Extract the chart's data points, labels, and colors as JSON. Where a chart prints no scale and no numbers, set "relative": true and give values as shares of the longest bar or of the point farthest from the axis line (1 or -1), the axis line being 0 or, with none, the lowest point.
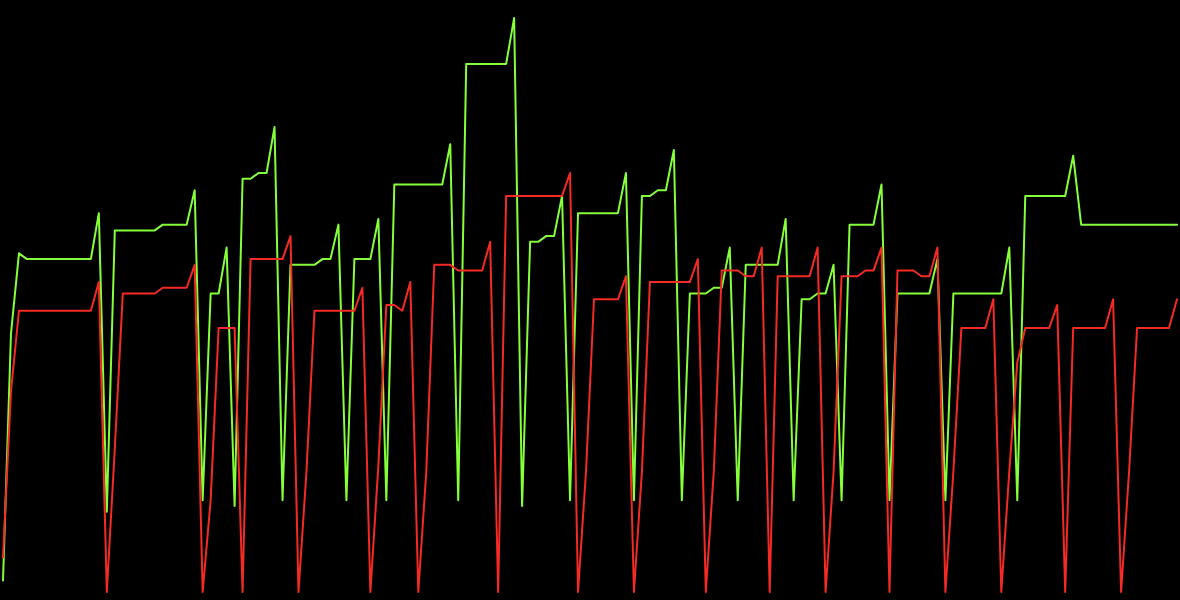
{
  "chart_data": {
    "type": "line",
    "relative": true,
    "marker": "none",
    "line_style": "solid",
    "categories": [
      null,
      null,
      null,
      null,
      null,
      null,
      null,
      null,
      null,
      null,
      null,
      null,
      null,
      null,
      null,
      null,
      null,
      null,
      null,
      null,
      null,
      null,
      null,
      null,
      null,
      null,
      null,
      null,
      null,
      null,
      null,
      null,
      null,
      null,
      null,
      null,
      null,
      null,
      null,
      null,
      null,
      null,
      null,
      null,
      null,
      null,
      null,
      null,
      null,
      null,
      null,
      null,
      null,
      null,
      null,
      null,
      null,
      null,
      null,
      null,
      null,
      null,
      null,
      null,
      null,
      null,
      null,
      null,
      null,
      null,
      null,
      null,
      null,
      null,
      null,
      null,
      null,
      null,
      null,
      null,
      null,
      null,
      null,
      null,
      null,
      null,
      null,
      null,
      null,
      null,
      null,
      null,
      null,
      null,
      null,
      null,
      null,
      null,
      null,
      null,
      null,
      null,
      null,
      null,
      null,
      null,
      null,
      null,
      null,
      null,
      null,
      null,
      null,
      null,
      null,
      null,
      null,
      null,
      null,
      null,
      null,
      null,
      null,
      null,
      null,
      null,
      null,
      null,
      null,
      null,
      null,
      null,
      null,
      null,
      null,
      null,
      null,
      null,
      null,
      null,
      null,
      null,
      null,
      null,
      null,
      null,
      null,
      null
    ],
    "series": [
      {
        "color": "#84ff3a",
        "values": [
          0.02,
          0.45,
          0.59,
          0.58,
          0.58,
          0.58,
          0.58,
          0.58,
          0.58,
          0.58,
          0.58,
          0.58,
          0.66,
          0.14,
          0.63,
          0.63,
          0.63,
          0.63,
          0.63,
          0.63,
          0.64,
          0.64,
          0.64,
          0.64,
          0.7,
          0.16,
          0.52,
          0.52,
          0.6,
          0.15,
          0.72,
          0.72,
          0.73,
          0.73,
          0.81,
          0.16,
          0.57,
          0.57,
          0.57,
          0.57,
          0.58,
          0.58,
          0.64,
          0.16,
          0.58,
          0.58,
          0.58,
          0.65,
          0.16,
          0.71,
          0.71,
          0.71,
          0.71,
          0.71,
          0.71,
          0.71,
          0.78,
          0.16,
          0.92,
          0.92,
          0.92,
          0.92,
          0.92,
          0.92,
          1,
          0.15,
          0.61,
          0.61,
          0.62,
          0.62,
          0.69,
          0.16,
          0.66,
          0.66,
          0.66,
          0.66,
          0.66,
          0.66,
          0.73,
          0.16,
          0.69,
          0.69,
          0.7,
          0.7,
          0.77,
          0.16,
          0.52,
          0.52,
          0.52,
          0.53,
          0.53,
          0.6,
          0.16,
          0.57,
          0.57,
          0.57,
          0.57,
          0.57,
          0.65,
          0.16,
          0.51,
          0.51,
          0.52,
          0.52,
          0.57,
          0.16,
          0.64,
          0.64,
          0.64,
          0.64,
          0.71,
          0.16,
          0.52,
          0.52,
          0.52,
          0.52,
          0.52,
          0.58,
          0.16,
          0.52,
          0.52,
          0.52,
          0.52,
          0.52,
          0.52,
          0.52,
          0.6,
          0.16,
          0.69,
          0.69,
          0.69,
          0.69,
          0.69,
          0.69,
          0.76,
          0.64,
          0.64,
          0.64,
          0.64,
          0.64,
          0.64,
          0.64,
          0.64,
          0.64,
          0.64,
          0.64,
          0.64,
          0.64
        ]
      },
      {
        "color": "#f42a24",
        "values": [
          0.06,
          0.35,
          0.49,
          0.49,
          0.49,
          0.49,
          0.49,
          0.49,
          0.49,
          0.49,
          0.49,
          0.49,
          0.54,
          0,
          0.25,
          0.52,
          0.52,
          0.52,
          0.52,
          0.52,
          0.53,
          0.53,
          0.53,
          0.53,
          0.57,
          0,
          0.16,
          0.46,
          0.46,
          0.46,
          0,
          0.58,
          0.58,
          0.58,
          0.58,
          0.58,
          0.62,
          0,
          0.21,
          0.49,
          0.49,
          0.49,
          0.49,
          0.49,
          0.49,
          0.53,
          0,
          0.22,
          0.5,
          0.5,
          0.49,
          0.54,
          0,
          0.21,
          0.57,
          0.57,
          0.57,
          0.56,
          0.56,
          0.56,
          0.56,
          0.61,
          0,
          0.69,
          0.69,
          0.69,
          0.69,
          0.69,
          0.69,
          0.69,
          0.69,
          0.73,
          0,
          0.21,
          0.51,
          0.51,
          0.51,
          0.51,
          0.55,
          0,
          0.21,
          0.54,
          0.54,
          0.54,
          0.54,
          0.54,
          0.54,
          0.58,
          0,
          0.21,
          0.56,
          0.56,
          0.56,
          0.55,
          0.55,
          0.6,
          0,
          0.55,
          0.55,
          0.55,
          0.55,
          0.55,
          0.6,
          0,
          0.21,
          0.55,
          0.55,
          0.55,
          0.56,
          0.56,
          0.6,
          0,
          0.56,
          0.56,
          0.56,
          0.55,
          0.55,
          0.6,
          0,
          0.21,
          0.46,
          0.46,
          0.46,
          0.46,
          0.51,
          0,
          0.21,
          0.4,
          0.46,
          0.46,
          0.46,
          0.46,
          0.5,
          0,
          0.46,
          0.46,
          0.46,
          0.46,
          0.46,
          0.51,
          0,
          0.21,
          0.46,
          0.46,
          0.46,
          0.46,
          0.46,
          0.51
        ]
      }
    ]
  }
}
